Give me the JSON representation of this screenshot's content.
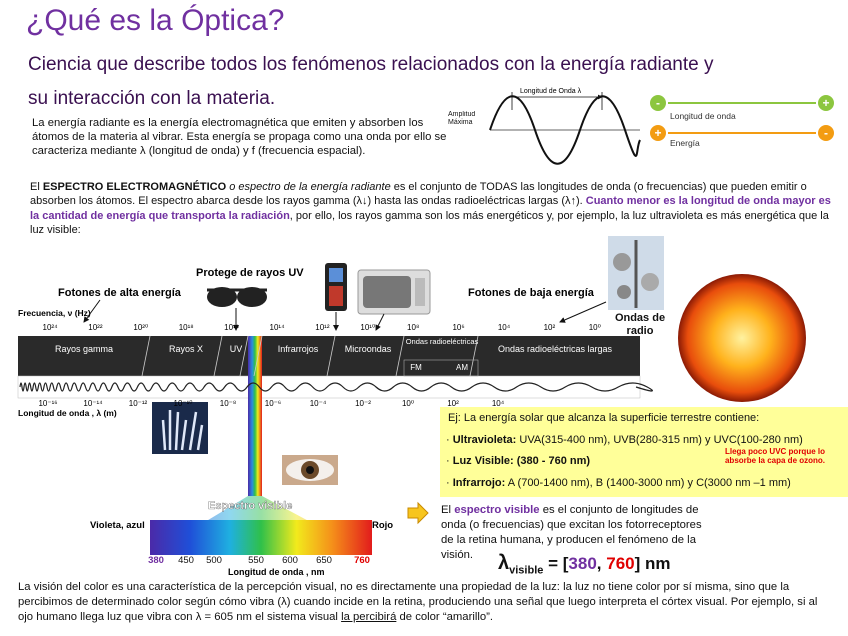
{
  "header": {
    "title": "¿Qué es la Óptica?",
    "subtitle": "Ciencia que describe todos los fenómenos relacionados con la energía radiante y su interacción con la materia."
  },
  "intro": "La energía radiante es la energía electromagnética que emiten y absorben los átomos de la materia al vibrar. Esta energía se propaga como una onda por ello se caracteriza mediante λ (longitud de onda) y f (frecuencia espacial).",
  "wave_diagram": {
    "wavelength_label": "Longitud de Onda λ",
    "amplitude_label": "Amplitud Máxima"
  },
  "energy_diagram": {
    "wavelength_label": "Longitud de onda",
    "energy_label": "Energía",
    "minus": "-",
    "plus": "+"
  },
  "spectrum_text": [
    "El ",
    "ESPECTRO ELECTROMAGNÉTICO",
    " o espectro de la energía radiante",
    " es el conjunto de TODAS las longitudes de onda (o frecuencias) que pueden  emitir o absorben los átomos. El espectro abarca desde los rayos gamma (λ↓) hasta las ondas radioeléctricas largas (λ↑). ",
    "Cuanto menor es la longitud de onda mayor es la cantidad de energía que transporta la radiación",
    ", por ello, los rayos gamma son los más energéticos y, por ejemplo, la luz ultravioleta es más energética que la luz visible:"
  ],
  "spectrum_diagram": {
    "high_energy": "Fotones de alta energía",
    "uv_protect": "Protege de rayos UV",
    "low_energy": "Fotones de baja energía",
    "radio_waves": "Ondas de radio",
    "frequency_label": "Frecuencia, ν (Hz)",
    "frequency_ticks": [
      "10²⁴",
      "10²²",
      "10²⁰",
      "10¹⁸",
      "10¹⁶",
      "10¹⁴",
      "10¹²",
      "10¹⁰",
      "10⁸",
      "10⁶",
      "10⁴",
      "10²",
      "10⁰"
    ],
    "bands": [
      "Rayos gamma",
      "Rayos X",
      "UV",
      "Infrarrojos",
      "Microondas",
      "Ondas radioeléctricas",
      "Ondas radioeléctricas largas"
    ],
    "sub_bands": [
      "FM",
      "AM"
    ],
    "wavelength_label": "Longitud de onda , λ (m)",
    "wavelength_ticks": [
      "10⁻¹⁶",
      "10⁻¹⁴",
      "10⁻¹²",
      "10⁻¹⁰",
      "10⁻⁸",
      "10⁻⁶",
      "10⁻⁴",
      "10⁻²",
      "10⁰",
      "10²",
      "10⁴"
    ]
  },
  "visible_diagram": {
    "title": "Espectro visible",
    "left_label": "Violeta, azul",
    "right_label": "Rojo",
    "ticks": [
      380,
      450,
      500,
      550,
      600,
      650,
      760
    ],
    "axis_label": "Longitud de onda , nm"
  },
  "solar_box": {
    "intro": "Ej: La energía solar que alcanza la superficie terrestre contiene:",
    "items": [
      {
        "label": "Ultravioleta:",
        "text": " UVA(315-400 nm), UVB(280-315 nm) y UVC(100-280 nm)"
      },
      {
        "label": "Luz Visible: (380 - 760 nm)"
      },
      {
        "label": "Infrarrojo:",
        "text": " A (700-1400 nm), B (1400-3000 nm) y C(3000 nm –1 mm)"
      }
    ],
    "note": "Llega poco UVC porque lo absorbe la capa de ozono."
  },
  "visible_text": [
    "El ",
    "espectro visible",
    " es el conjunto de longitudes de onda (o frecuencias) que excitan los fotorreceptores de la retina humana, y producen el fenómeno de la visión."
  ],
  "formula": {
    "symbol": "λ",
    "subscript": "visible",
    "open": " = [",
    "min": 380,
    "separator": ", ",
    "max": 760,
    "close": "] nm"
  },
  "footer_text": [
    "La visión del color es una característica de la percepción visual, no es directamente una propiedad de la luz: la luz no tiene color por sí misma, sino que la percibimos de determinado color según cómo vibra (λ) cuando incide en la retina, produciendo una señal que luego interpreta el córtex visual. Por ejemplo, si al ojo humano llega luz que vibra con λ = 605 nm el sistema visual ",
    "la percibirá",
    " de color “amarillo”."
  ]
}
